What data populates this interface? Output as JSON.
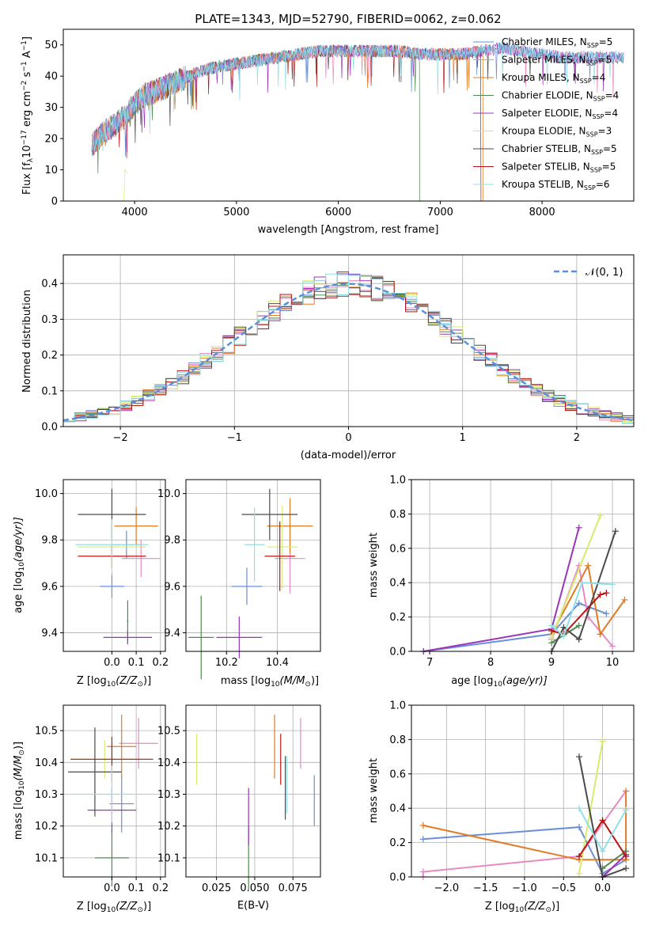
{
  "series_colors": {
    "Chabrier MILES": "#6a8fd6",
    "Salpeter MILES": "#e78ac3",
    "Kroupa MILES": "#e07b28",
    "Chabrier ELODIE": "#4f8a4f",
    "Salpeter ELODIE": "#9b34b6",
    "Kroupa ELODIE": "#d7ec6a",
    "Chabrier STELIB": "#4a4a4a",
    "Salpeter STELIB": "#b81414",
    "Kroupa STELIB": "#8fe0e8"
  },
  "chart_data": [
    {
      "id": "spectrum",
      "type": "line",
      "title": "PLATE=1343, MJD=52790, FIBERID=0062, z=0.062",
      "xlabel": "wavelength [Angstrom, rest frame]",
      "ylabel": "Flux [f",
      "ylabel_sub": "λ",
      "ylabel_rest": "10",
      "ylabel_exp": "−17",
      "ylabel_units": " erg cm",
      "ylabel_cm_exp": "−2",
      "ylabel_s": " s",
      "ylabel_s_exp": "−1",
      "ylabel_A": " A",
      "ylabel_A_exp": "−1",
      "ylabel_close": "]",
      "xlim": [
        3300,
        8900
      ],
      "ylim": [
        0,
        55
      ],
      "xticks": [
        4000,
        5000,
        6000,
        7000,
        8000
      ],
      "yticks": [
        0,
        10,
        20,
        30,
        40,
        50
      ],
      "grid": false,
      "legend_position": "right",
      "legend": [
        {
          "name": "Chabrier MILES",
          "nssp": "5"
        },
        {
          "name": "Salpeter MILES",
          "nssp": "5"
        },
        {
          "name": "Kroupa MILES",
          "nssp": "4"
        },
        {
          "name": "Chabrier ELODIE",
          "nssp": "4"
        },
        {
          "name": "Salpeter ELODIE",
          "nssp": "4"
        },
        {
          "name": "Kroupa ELODIE",
          "nssp": "3"
        },
        {
          "name": "Chabrier STELIB",
          "nssp": "5"
        },
        {
          "name": "Salpeter STELIB",
          "nssp": "5"
        },
        {
          "name": "Kroupa STELIB",
          "nssp": "6"
        }
      ],
      "continuum": [
        [
          3580,
          18
        ],
        [
          3700,
          22
        ],
        [
          3800,
          24
        ],
        [
          3900,
          27
        ],
        [
          4000,
          31
        ],
        [
          4100,
          34
        ],
        [
          4200,
          35
        ],
        [
          4400,
          38
        ],
        [
          4600,
          41
        ],
        [
          4800,
          43
        ],
        [
          5000,
          44
        ],
        [
          5200,
          45
        ],
        [
          5400,
          46
        ],
        [
          5600,
          47
        ],
        [
          5800,
          48
        ],
        [
          6000,
          48
        ],
        [
          6200,
          48
        ],
        [
          6400,
          48
        ],
        [
          6600,
          48
        ],
        [
          6800,
          47
        ],
        [
          7000,
          47
        ],
        [
          7200,
          47
        ],
        [
          7400,
          48
        ],
        [
          7600,
          49
        ],
        [
          7800,
          48
        ],
        [
          8000,
          47
        ],
        [
          8200,
          46
        ],
        [
          8400,
          46
        ],
        [
          8600,
          46
        ],
        [
          8800,
          46
        ]
      ],
      "series_end": {
        "Kroupa ELODIE": 3930,
        "Chabrier ELODIE": 6800,
        "Salpeter STELIB": 7400,
        "Kroupa MILES": 7420
      },
      "series_start": {
        "Kroupa ELODIE": 3900,
        "Chabrier ELODIE": 3580,
        "Salpeter STELIB": 3580
      }
    },
    {
      "id": "residual-histogram",
      "type": "line",
      "xlabel": "(data-model)/error",
      "ylabel": "Normed distribution",
      "xlim": [
        -2.5,
        2.5
      ],
      "ylim": [
        0,
        0.48
      ],
      "xticks": [
        -2,
        -1,
        0,
        1,
        2
      ],
      "yticks": [
        0.0,
        0.1,
        0.2,
        0.3,
        0.4
      ],
      "grid": true,
      "legend_position": "top-right",
      "legend_label": "𝒩(0, 1)",
      "reference_curve": "normal(0,1)",
      "bin_width": 0.1
    },
    {
      "id": "age-vs-Z",
      "type": "scatter",
      "xlabel": "Z [log",
      "xlabel_sub": "10",
      "xlabel_rest": "(Z/Z",
      "xlabel_sun": "⊙",
      "xlabel_close": ")]",
      "ylabel": "age  [log",
      "ylabel_sub": "10",
      "ylabel_rest": "(age/yr)]",
      "xlim": [
        -0.2,
        0.22
      ],
      "ylim": [
        9.32,
        10.06
      ],
      "xticks": [
        0.0,
        0.1,
        0.2
      ],
      "yticks": [
        9.4,
        9.6,
        9.8,
        10.0
      ],
      "grid": true,
      "points": [
        {
          "series": "Chabrier MILES",
          "x": 0.0,
          "y": 9.6,
          "xerr": 0.05,
          "yerr": 0.05
        },
        {
          "series": "Chabrier MILES",
          "x": 0.06,
          "y": 9.78,
          "xerr": 0.06,
          "yerr": 0.06
        },
        {
          "series": "Salpeter MILES",
          "x": 0.12,
          "y": 9.72,
          "xerr": 0.08,
          "yerr": 0.08
        },
        {
          "series": "Kroupa MILES",
          "x": 0.1,
          "y": 9.86,
          "xerr": 0.09,
          "yerr": 0.08
        },
        {
          "series": "Chabrier ELODIE",
          "x": 0.065,
          "y": 9.45,
          "xerr": 0.003,
          "yerr": 0.09
        },
        {
          "series": "Salpeter ELODIE",
          "x": 0.065,
          "y": 9.38,
          "xerr": 0.1,
          "yerr": 0.03
        },
        {
          "series": "Kroupa ELODIE",
          "x": 0.0,
          "y": 9.77,
          "xerr": 0.14,
          "yerr": 0.1
        },
        {
          "series": "Chabrier STELIB",
          "x": 0.0,
          "y": 9.91,
          "xerr": 0.14,
          "yerr": 0.11
        },
        {
          "series": "Salpeter STELIB",
          "x": 0.0,
          "y": 9.73,
          "xerr": 0.14,
          "yerr": 0.05
        },
        {
          "series": "Kroupa STELIB",
          "x": 0.0,
          "y": 9.78,
          "xerr": 0.15,
          "yerr": 0.11
        }
      ]
    },
    {
      "id": "age-vs-mass",
      "type": "scatter",
      "xlabel": "mass [log",
      "xlabel_sub": "10",
      "xlabel_rest": "(M/M",
      "xlabel_sun": "⊙",
      "xlabel_close": ")]",
      "xlim": [
        10.04,
        10.57
      ],
      "ylim": [
        9.32,
        10.06
      ],
      "xticks": [
        10.2,
        10.4
      ],
      "yticks": [
        9.4,
        9.6,
        9.8,
        10.0
      ],
      "grid": true,
      "points": [
        {
          "series": "Chabrier MILES",
          "x": 10.28,
          "y": 9.6,
          "xerr": 0.06,
          "yerr": 0.08
        },
        {
          "series": "Salpeter MILES",
          "x": 10.45,
          "y": 9.72,
          "xerr": 0.06,
          "yerr": 0.15
        },
        {
          "series": "Kroupa MILES",
          "x": 10.45,
          "y": 9.86,
          "xerr": 0.09,
          "yerr": 0.12
        },
        {
          "series": "Chabrier ELODIE",
          "x": 10.1,
          "y": 9.38,
          "xerr": 0.05,
          "yerr": 0.18
        },
        {
          "series": "Salpeter ELODIE",
          "x": 10.25,
          "y": 9.38,
          "xerr": 0.09,
          "yerr": 0.09
        },
        {
          "series": "Kroupa ELODIE",
          "x": 10.42,
          "y": 9.77,
          "xerr": 0.06,
          "yerr": 0.18
        },
        {
          "series": "Chabrier STELIB",
          "x": 10.37,
          "y": 9.91,
          "xerr": 0.11,
          "yerr": 0.11
        },
        {
          "series": "Salpeter STELIB",
          "x": 10.41,
          "y": 9.73,
          "xerr": 0.06,
          "yerr": 0.15
        },
        {
          "series": "Kroupa STELIB",
          "x": 10.31,
          "y": 9.78,
          "xerr": 0.04,
          "yerr": 0.16
        }
      ]
    },
    {
      "id": "mass-weight-vs-age",
      "type": "line",
      "xlabel": "age  [log",
      "xlabel_sub": "10",
      "xlabel_rest": "(age/yr)]",
      "ylabel": "mass weight",
      "xlim": [
        6.7,
        10.35
      ],
      "ylim": [
        0,
        1.0
      ],
      "xticks": [
        7,
        8,
        9,
        10
      ],
      "yticks": [
        0.0,
        0.2,
        0.4,
        0.6,
        0.8,
        1.0
      ],
      "grid": true,
      "series": [
        {
          "name": "Chabrier MILES",
          "x": [
            6.9,
            9.0,
            9.45,
            9.9
          ],
          "y": [
            0.0,
            0.1,
            0.28,
            0.22
          ]
        },
        {
          "name": "Salpeter MILES",
          "x": [
            9.0,
            9.45,
            9.6,
            10.0
          ],
          "y": [
            0.07,
            0.5,
            0.2,
            0.03
          ]
        },
        {
          "name": "Kroupa MILES",
          "x": [
            9.0,
            9.6,
            9.8,
            10.2
          ],
          "y": [
            0.1,
            0.5,
            0.1,
            0.3
          ]
        },
        {
          "name": "Chabrier ELODIE",
          "x": [
            9.0,
            9.45
          ],
          "y": [
            0.05,
            0.15
          ]
        },
        {
          "name": "Salpeter ELODIE",
          "x": [
            6.9,
            9.0,
            9.45
          ],
          "y": [
            0.0,
            0.13,
            0.72
          ]
        },
        {
          "name": "Kroupa ELODIE",
          "x": [
            9.0,
            9.8
          ],
          "y": [
            0.08,
            0.79
          ]
        },
        {
          "name": "Chabrier STELIB",
          "x": [
            9.0,
            9.2,
            9.45,
            10.05
          ],
          "y": [
            0.0,
            0.14,
            0.07,
            0.7
          ]
        },
        {
          "name": "Salpeter STELIB",
          "x": [
            9.0,
            9.2,
            9.8,
            9.9
          ],
          "y": [
            0.12,
            0.1,
            0.33,
            0.34
          ]
        },
        {
          "name": "Kroupa STELIB",
          "x": [
            9.0,
            9.2,
            9.5,
            10.0
          ],
          "y": [
            0.15,
            0.09,
            0.4,
            0.39
          ]
        }
      ]
    },
    {
      "id": "mass-vs-Z",
      "type": "scatter",
      "xlabel": "Z [log",
      "xlabel_sub": "10",
      "xlabel_rest": "(Z/Z",
      "xlabel_sun": "⊙",
      "xlabel_close": ")]",
      "ylabel": "mass [log",
      "ylabel_sub": "10",
      "ylabel_rest": "(M/M",
      "ylabel_sun": "⊙",
      "ylabel_close": ")]",
      "xlim": [
        -0.2,
        0.22
      ],
      "ylim": [
        10.04,
        10.58
      ],
      "xticks": [
        0.0,
        0.1,
        0.2
      ],
      "yticks": [
        10.1,
        10.2,
        10.3,
        10.4,
        10.5
      ],
      "grid": true,
      "points": [
        {
          "series": "Chabrier MILES",
          "x": 0.04,
          "y": 10.27,
          "xerr": 0.05,
          "yerr": 0.09
        },
        {
          "series": "Salpeter MILES",
          "x": 0.11,
          "y": 10.46,
          "xerr": 0.08,
          "yerr": 0.08
        },
        {
          "series": "Kroupa MILES",
          "x": 0.04,
          "y": 10.45,
          "xerr": 0.06,
          "yerr": 0.1
        },
        {
          "series": "Chabrier ELODIE",
          "x": 0.0,
          "y": 10.1,
          "xerr": 0.07,
          "yerr": 0.09
        },
        {
          "series": "Salpeter ELODIE",
          "x": 0.0,
          "y": 10.25,
          "xerr": 0.1,
          "yerr": 0.07
        },
        {
          "series": "Kroupa ELODIE",
          "x": -0.03,
          "y": 10.41,
          "xerr": 0.14,
          "yerr": 0.06
        },
        {
          "series": "Chabrier STELIB",
          "x": -0.07,
          "y": 10.37,
          "xerr": 0.11,
          "yerr": 0.14
        },
        {
          "series": "Salpeter STELIB",
          "x": 0.0,
          "y": 10.41,
          "xerr": 0.17,
          "yerr": 0.07
        },
        {
          "series": "Kroupa STELIB",
          "x": 0.0,
          "y": 10.3,
          "xerr": 0.13,
          "yerr": 0.09
        }
      ]
    },
    {
      "id": "mass-vs-ebv",
      "type": "scatter",
      "xlabel": "E(B-V)",
      "xlim": [
        0.005,
        0.093
      ],
      "ylim": [
        10.04,
        10.58
      ],
      "xticks": [
        0.025,
        0.05,
        0.075
      ],
      "xtick_labels": [
        "0.025",
        "0.050",
        "0.075"
      ],
      "yticks": [
        10.1,
        10.2,
        10.3,
        10.4,
        10.5
      ],
      "grid": true,
      "points": [
        {
          "series": "Chabrier MILES",
          "x": 0.089,
          "y": 10.28,
          "yerr": 0.08
        },
        {
          "series": "Salpeter MILES",
          "x": 0.08,
          "y": 10.46,
          "yerr": 0.08
        },
        {
          "series": "Kroupa MILES",
          "x": 0.063,
          "y": 10.45,
          "yerr": 0.1
        },
        {
          "series": "Chabrier ELODIE",
          "x": 0.046,
          "y": 10.1,
          "yerr": 0.1
        },
        {
          "series": "Salpeter ELODIE",
          "x": 0.046,
          "y": 10.23,
          "yerr": 0.09
        },
        {
          "series": "Kroupa ELODIE",
          "x": 0.012,
          "y": 10.41,
          "yerr": 0.08
        },
        {
          "series": "Chabrier STELIB",
          "x": 0.07,
          "y": 10.32,
          "yerr": 0.1
        },
        {
          "series": "Salpeter STELIB",
          "x": 0.067,
          "y": 10.41,
          "yerr": 0.08
        },
        {
          "series": "Kroupa STELIB",
          "x": 0.071,
          "y": 10.33,
          "yerr": 0.09
        }
      ]
    },
    {
      "id": "mass-weight-vs-Z",
      "type": "line",
      "xlabel": "Z [log",
      "xlabel_sub": "10",
      "xlabel_rest": "(Z/Z",
      "xlabel_sun": "⊙",
      "xlabel_close": ")]",
      "ylabel": "mass weight",
      "xlim": [
        -2.45,
        0.4
      ],
      "ylim": [
        0,
        1.0
      ],
      "xticks": [
        -2.0,
        -1.5,
        -1.0,
        -0.5,
        0.0
      ],
      "xtick_labels": [
        "−2.0",
        "−1.5",
        "−1.0",
        "−0.5",
        "0.0"
      ],
      "yticks": [
        0.0,
        0.2,
        0.4,
        0.6,
        0.8,
        1.0
      ],
      "grid": true,
      "series": [
        {
          "name": "Chabrier MILES",
          "x": [
            -2.3,
            -0.3,
            0.0,
            0.3
          ],
          "y": [
            0.22,
            0.29,
            0.02,
            0.1
          ]
        },
        {
          "name": "Salpeter MILES",
          "x": [
            -2.3,
            -2.3,
            -0.3,
            0.3
          ],
          "y": [
            0.0,
            0.03,
            0.12,
            0.5
          ]
        },
        {
          "name": "Kroupa MILES",
          "x": [
            -2.3,
            -0.3,
            0.3,
            0.3
          ],
          "y": [
            0.3,
            0.1,
            0.1,
            0.5
          ]
        },
        {
          "name": "Chabrier ELODIE",
          "x": [
            0.0,
            0.3
          ],
          "y": [
            0.05,
            0.15
          ]
        },
        {
          "name": "Salpeter ELODIE",
          "x": [
            0.0,
            0.3
          ],
          "y": [
            0.0,
            0.13
          ]
        },
        {
          "name": "Kroupa ELODIE",
          "x": [
            -0.3,
            0.0
          ],
          "y": [
            0.02,
            0.79
          ]
        },
        {
          "name": "Chabrier STELIB",
          "x": [
            -0.3,
            0.0,
            0.3
          ],
          "y": [
            0.7,
            0.0,
            0.05
          ]
        },
        {
          "name": "Salpeter STELIB",
          "x": [
            -0.3,
            0.0,
            0.3
          ],
          "y": [
            0.12,
            0.33,
            0.12
          ]
        },
        {
          "name": "Kroupa STELIB",
          "x": [
            -0.3,
            0.0,
            0.3
          ],
          "y": [
            0.4,
            0.15,
            0.39
          ]
        }
      ]
    }
  ]
}
